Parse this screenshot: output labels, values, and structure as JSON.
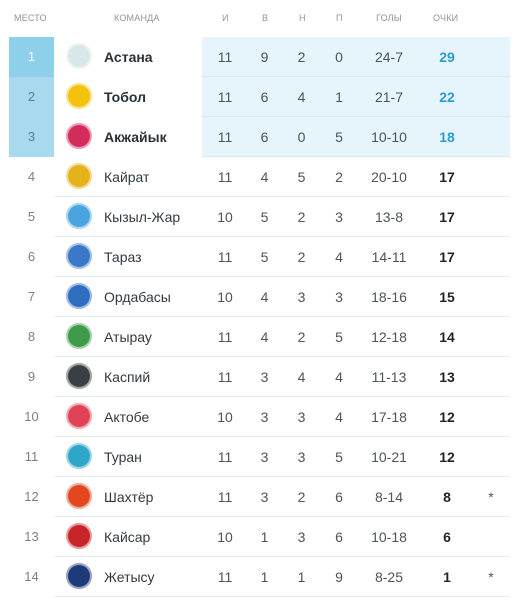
{
  "headers": {
    "pos": "Место",
    "team": "Команда",
    "played": "И",
    "won": "В",
    "drawn": "Н",
    "lost": "П",
    "goals": "Голы",
    "points": "Очки"
  },
  "colors": {
    "zone_fill": "#e5f5fb",
    "zone_position": "#a9d9ee",
    "leader_position": "#8ecfe9",
    "top_points": "#2b9bd1"
  },
  "rows": [
    {
      "pos": "1",
      "team": "Астана",
      "logo_icon": "astana-logo-icon",
      "logo_color": "#d8e7e7",
      "played": "11",
      "won": "9",
      "drawn": "2",
      "lost": "0",
      "goals": "24-7",
      "points": "29",
      "mark": ""
    },
    {
      "pos": "2",
      "team": "Тобол",
      "logo_icon": "tobol-logo-icon",
      "logo_color": "#f2c20c",
      "played": "11",
      "won": "6",
      "drawn": "4",
      "lost": "1",
      "goals": "21-7",
      "points": "22",
      "mark": ""
    },
    {
      "pos": "3",
      "team": "Акжайык",
      "logo_icon": "akzhaiyk-logo-icon",
      "logo_color": "#d32b5a",
      "played": "11",
      "won": "6",
      "drawn": "0",
      "lost": "5",
      "goals": "10-10",
      "points": "18",
      "mark": ""
    },
    {
      "pos": "4",
      "team": "Кайрат",
      "logo_icon": "kairat-logo-icon",
      "logo_color": "#e6b21a",
      "played": "11",
      "won": "4",
      "drawn": "5",
      "lost": "2",
      "goals": "20-10",
      "points": "17",
      "mark": ""
    },
    {
      "pos": "5",
      "team": "Кызыл-Жар",
      "logo_icon": "kyzyl-zhar-logo-icon",
      "logo_color": "#4aa4dd",
      "played": "10",
      "won": "5",
      "drawn": "2",
      "lost": "3",
      "goals": "13-8",
      "points": "17",
      "mark": ""
    },
    {
      "pos": "6",
      "team": "Тараз",
      "logo_icon": "taraz-logo-icon",
      "logo_color": "#3a77c8",
      "played": "11",
      "won": "5",
      "drawn": "2",
      "lost": "4",
      "goals": "14-11",
      "points": "17",
      "mark": ""
    },
    {
      "pos": "7",
      "team": "Ордабасы",
      "logo_icon": "ordabasy-logo-icon",
      "logo_color": "#2f6dbe",
      "played": "10",
      "won": "4",
      "drawn": "3",
      "lost": "3",
      "goals": "18-16",
      "points": "15",
      "mark": ""
    },
    {
      "pos": "8",
      "team": "Атырау",
      "logo_icon": "atyrau-logo-icon",
      "logo_color": "#3f9b4a",
      "played": "11",
      "won": "4",
      "drawn": "2",
      "lost": "5",
      "goals": "12-18",
      "points": "14",
      "mark": ""
    },
    {
      "pos": "9",
      "team": "Каспий",
      "logo_icon": "kaspiy-logo-icon",
      "logo_color": "#3a3f44",
      "played": "11",
      "won": "3",
      "drawn": "4",
      "lost": "4",
      "goals": "11-13",
      "points": "13",
      "mark": ""
    },
    {
      "pos": "10",
      "team": "Актобе",
      "logo_icon": "aktobe-logo-icon",
      "logo_color": "#e04356",
      "played": "10",
      "won": "3",
      "drawn": "3",
      "lost": "4",
      "goals": "17-18",
      "points": "12",
      "mark": ""
    },
    {
      "pos": "11",
      "team": "Туран",
      "logo_icon": "turan-logo-icon",
      "logo_color": "#2fa6c7",
      "played": "11",
      "won": "3",
      "drawn": "3",
      "lost": "5",
      "goals": "10-21",
      "points": "12",
      "mark": ""
    },
    {
      "pos": "12",
      "team": "Шахтёр",
      "logo_icon": "shakhtyor-logo-icon",
      "logo_color": "#e2471f",
      "played": "11",
      "won": "3",
      "drawn": "2",
      "lost": "6",
      "goals": "8-14",
      "points": "8",
      "mark": "*"
    },
    {
      "pos": "13",
      "team": "Кайсар",
      "logo_icon": "kaisar-logo-icon",
      "logo_color": "#c8252b",
      "played": "10",
      "won": "1",
      "drawn": "3",
      "lost": "6",
      "goals": "10-18",
      "points": "6",
      "mark": ""
    },
    {
      "pos": "14",
      "team": "Жетысу",
      "logo_icon": "zhetysu-logo-icon",
      "logo_color": "#1f3a78",
      "played": "11",
      "won": "1",
      "drawn": "1",
      "lost": "9",
      "goals": "8-25",
      "points": "1",
      "mark": "*"
    }
  ]
}
